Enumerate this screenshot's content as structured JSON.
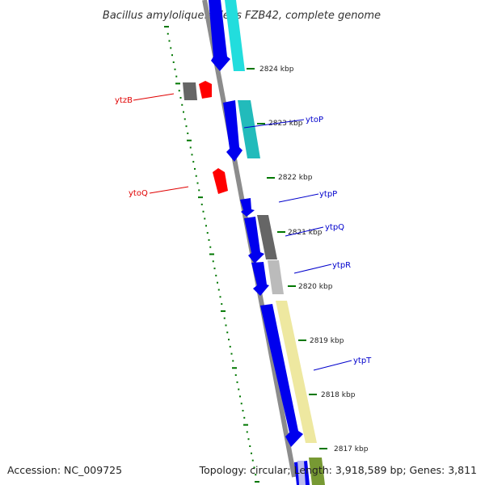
{
  "title": "Bacillus amyloliquefaciens FZB42, complete genome",
  "accession_text": "Accession: NC_009725",
  "topology_text": "Topology: circular; Length: 3,918,589 bp; Genes: 3,811",
  "kbp_labels": [
    "2824 kbp",
    "2823 kbp",
    "2822 kbp",
    "2821 kbp",
    "2820 kbp",
    "2819 kbp",
    "2818 kbp",
    "2817 kbp"
  ],
  "gene_labels": [
    {
      "name": "ytzB",
      "color": "#e00000"
    },
    {
      "name": "ytoP",
      "color": "#0000cc"
    },
    {
      "name": "ytoQ",
      "color": "#e00000"
    },
    {
      "name": "ytpP",
      "color": "#0000cc"
    },
    {
      "name": "ytpQ",
      "color": "#0000cc"
    },
    {
      "name": "ytpR",
      "color": "#0000cc"
    },
    {
      "name": "ytpT",
      "color": "#0000cc"
    }
  ],
  "colors": {
    "backbone": "#8c8c8c",
    "forward_cds": "#0000ee",
    "reverse_cds": "#ff0000",
    "tick_green": "#007700",
    "cog_cyan": "#22dddd",
    "cog_teal": "#22bbbb",
    "cog_gray": "#666666",
    "cog_lightgray": "#bbbbbb",
    "cog_yellow": "#eee8a0",
    "cog_olive": "#779933"
  }
}
